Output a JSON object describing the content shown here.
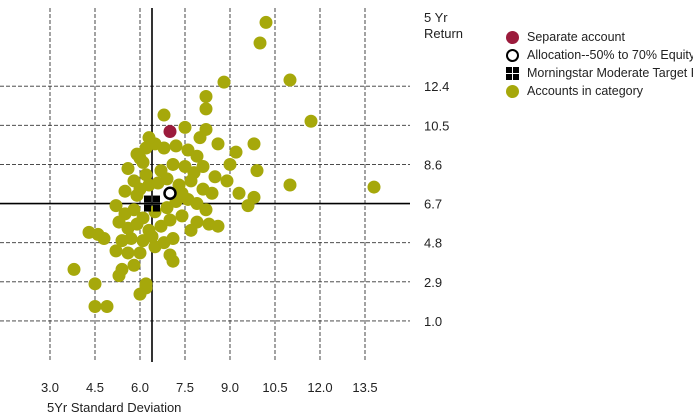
{
  "chart_data": {
    "type": "scatter",
    "xlabel": "5Yr Standard Deviation",
    "ylabel_lines": [
      "5 Yr",
      "Return"
    ],
    "x_ticks": [
      "3.0",
      "4.5",
      "6.0",
      "7.5",
      "9.0",
      "10.5",
      "12.0",
      "13.5"
    ],
    "y_ticks": [
      "12.4",
      "10.5",
      "8.6",
      "6.7",
      "4.8",
      "2.9",
      "1.0"
    ],
    "xlim": [
      1.5,
      15.0
    ],
    "ylim": [
      -0.9,
      16.2
    ],
    "grid": true,
    "legend_position": "right",
    "crosshair": {
      "x": 6.4,
      "y": 6.7
    },
    "series": [
      {
        "name": "Separate account",
        "marker": "circle",
        "color": "#9b1b3c",
        "points": [
          [
            7.0,
            10.2
          ]
        ]
      },
      {
        "name": "Allocation--50% to 70% Equity",
        "marker": "ring",
        "color": "#000000",
        "points": [
          [
            7.0,
            7.2
          ]
        ]
      },
      {
        "name": "Morningstar Moderate Target Risk",
        "marker": "grid",
        "color": "#000000",
        "points": [
          [
            6.4,
            6.7
          ]
        ]
      },
      {
        "name": "Accounts in category",
        "marker": "circle",
        "color": "#a6a80b",
        "points": [
          [
            10.2,
            15.5
          ],
          [
            10.0,
            14.5
          ],
          [
            11.0,
            12.7
          ],
          [
            8.2,
            11.9
          ],
          [
            8.2,
            11.3
          ],
          [
            8.8,
            12.6
          ],
          [
            11.7,
            10.7
          ],
          [
            6.8,
            11.0
          ],
          [
            7.5,
            10.4
          ],
          [
            8.2,
            10.3
          ],
          [
            8.0,
            9.9
          ],
          [
            8.6,
            9.6
          ],
          [
            9.8,
            9.6
          ],
          [
            9.2,
            9.2
          ],
          [
            9.0,
            8.6
          ],
          [
            9.9,
            8.3
          ],
          [
            13.8,
            7.5
          ],
          [
            11.0,
            7.6
          ],
          [
            9.3,
            7.2
          ],
          [
            9.8,
            7.0
          ],
          [
            9.6,
            6.6
          ],
          [
            8.2,
            6.4
          ],
          [
            8.6,
            5.6
          ],
          [
            8.3,
            5.7
          ],
          [
            7.9,
            5.8
          ],
          [
            7.0,
            4.2
          ],
          [
            7.1,
            3.9
          ],
          [
            6.5,
            4.6
          ],
          [
            6.0,
            4.3
          ],
          [
            5.6,
            4.3
          ],
          [
            5.2,
            4.4
          ],
          [
            4.8,
            5.0
          ],
          [
            4.6,
            5.2
          ],
          [
            4.3,
            5.3
          ],
          [
            5.8,
            3.7
          ],
          [
            5.4,
            3.5
          ],
          [
            5.3,
            3.2
          ],
          [
            6.2,
            2.8
          ],
          [
            6.2,
            2.6
          ],
          [
            6.0,
            2.3
          ],
          [
            3.8,
            3.5
          ],
          [
            4.5,
            2.8
          ],
          [
            4.5,
            1.7
          ],
          [
            4.9,
            1.7
          ],
          [
            6.0,
            8.9
          ],
          [
            5.9,
            9.1
          ],
          [
            6.2,
            9.4
          ],
          [
            6.5,
            9.6
          ],
          [
            6.8,
            9.4
          ],
          [
            7.2,
            9.5
          ],
          [
            7.6,
            9.3
          ],
          [
            7.9,
            9.0
          ],
          [
            5.6,
            8.4
          ],
          [
            5.8,
            7.8
          ],
          [
            6.2,
            8.1
          ],
          [
            6.7,
            8.3
          ],
          [
            7.1,
            8.6
          ],
          [
            7.5,
            8.5
          ],
          [
            7.8,
            8.2
          ],
          [
            8.1,
            8.5
          ],
          [
            8.5,
            8.0
          ],
          [
            8.9,
            7.8
          ],
          [
            5.5,
            7.3
          ],
          [
            5.9,
            7.1
          ],
          [
            6.3,
            7.6
          ],
          [
            6.6,
            7.7
          ],
          [
            6.9,
            7.9
          ],
          [
            7.3,
            7.6
          ],
          [
            7.7,
            7.8
          ],
          [
            8.1,
            7.4
          ],
          [
            8.4,
            7.2
          ],
          [
            5.2,
            6.6
          ],
          [
            5.5,
            6.2
          ],
          [
            5.8,
            6.4
          ],
          [
            6.1,
            6.0
          ],
          [
            6.5,
            6.3
          ],
          [
            6.9,
            6.5
          ],
          [
            7.2,
            6.8
          ],
          [
            7.6,
            6.9
          ],
          [
            7.9,
            6.7
          ],
          [
            5.3,
            5.8
          ],
          [
            5.6,
            5.5
          ],
          [
            5.9,
            5.7
          ],
          [
            6.3,
            5.4
          ],
          [
            6.7,
            5.6
          ],
          [
            7.0,
            5.9
          ],
          [
            7.4,
            6.1
          ],
          [
            7.7,
            5.4
          ],
          [
            5.4,
            4.9
          ],
          [
            5.7,
            5.0
          ],
          [
            6.1,
            4.9
          ],
          [
            6.4,
            5.1
          ],
          [
            6.8,
            4.8
          ],
          [
            7.1,
            5.0
          ],
          [
            6.3,
            9.9
          ],
          [
            6.1,
            8.7
          ],
          [
            7.4,
            7.2
          ],
          [
            6.0,
            7.4
          ]
        ]
      }
    ]
  },
  "legend": [
    {
      "label": "Separate account",
      "marker": "circle",
      "color": "#9b1b3c"
    },
    {
      "label": "Allocation--50% to 70% Equity",
      "marker": "ring",
      "color": "#000000"
    },
    {
      "label": "Morningstar Moderate Target Risk",
      "marker": "grid",
      "color": "#000000"
    },
    {
      "label": "Accounts in category",
      "marker": "circle",
      "color": "#a6a80b"
    }
  ]
}
